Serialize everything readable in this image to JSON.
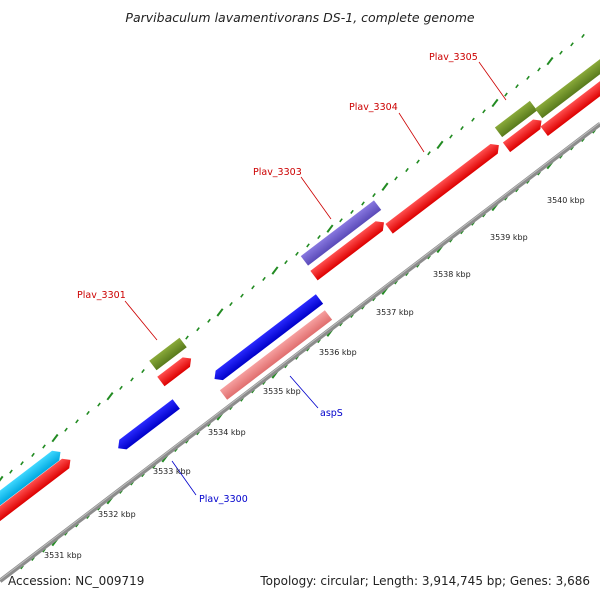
{
  "title": "Parvibaculum lavamentivorans DS-1, complete genome",
  "ticks": [
    {
      "label": "3531 kbp"
    },
    {
      "label": "3532 kbp"
    },
    {
      "label": "3533 kbp"
    },
    {
      "label": "3534 kbp"
    },
    {
      "label": "3535 kbp"
    },
    {
      "label": "3536 kbp"
    },
    {
      "label": "3537 kbp"
    },
    {
      "label": "3538 kbp"
    },
    {
      "label": "3539 kbp"
    },
    {
      "label": "3540 kbp"
    }
  ],
  "genes": [
    {
      "label": "Plav_3301",
      "color": "#cc0000"
    },
    {
      "label": "Plav_3303",
      "color": "#cc0000"
    },
    {
      "label": "Plav_3304",
      "color": "#cc0000"
    },
    {
      "label": "Plav_3305",
      "color": "#cc0000"
    },
    {
      "label": "aspS",
      "color": "#0000cc"
    },
    {
      "label": "Plav_3300",
      "color": "#0000cc"
    }
  ],
  "colors": {
    "cds_red": "#ff0000",
    "gene_green": "#6b8e23",
    "gene_blue": "#0000ee",
    "gene_pink": "#f08080",
    "gene_purple": "#6a5acd",
    "gene_cyan": "#00bfff",
    "axis_grey": "#8c8c8c",
    "tick_green": "#228b22"
  },
  "footer": {
    "accession": "Accession: NC_009719",
    "summary": "Topology: circular; Length: 3,914,745 bp; Genes: 3,686"
  }
}
